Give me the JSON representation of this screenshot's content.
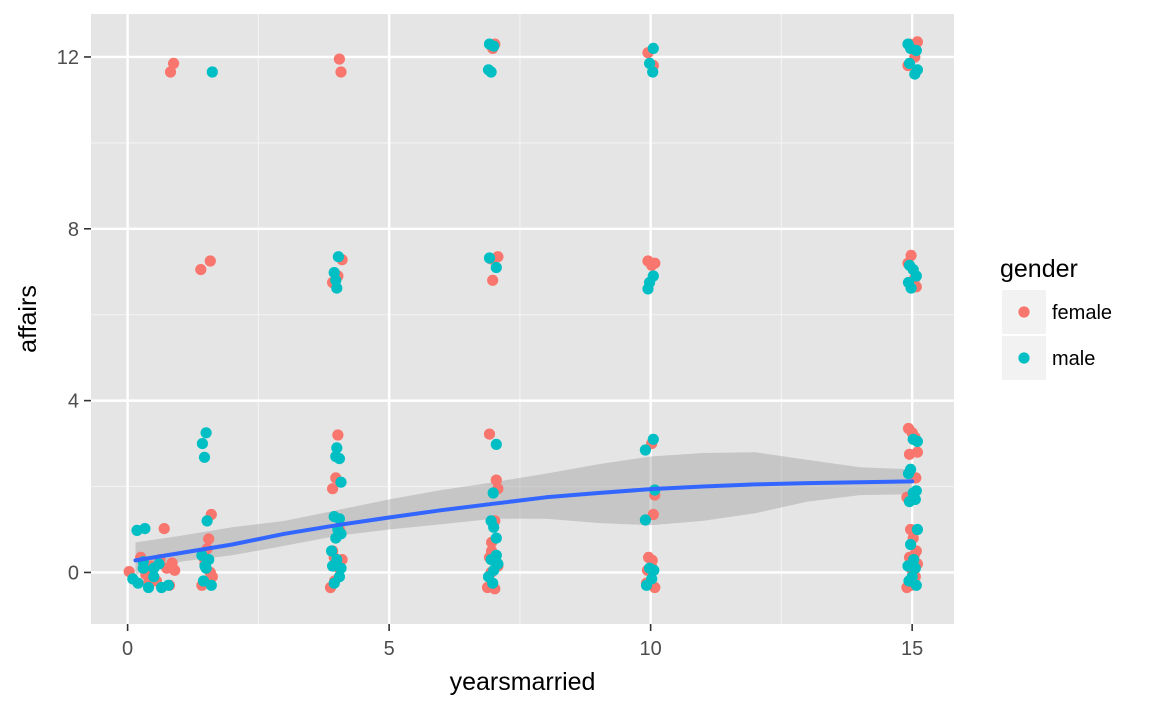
{
  "chart_data": {
    "type": "scatter",
    "title": "",
    "xlabel": "yearsmarried",
    "ylabel": "affairs",
    "xlim": [
      -0.7,
      15.8
    ],
    "ylim": [
      -1.2,
      13.0
    ],
    "x_ticks": [
      0,
      5,
      10,
      15
    ],
    "x_tick_labels": [
      "0",
      "5",
      "10",
      "15"
    ],
    "y_ticks": [
      0,
      4,
      8,
      12
    ],
    "y_tick_labels": [
      "0",
      "4",
      "8",
      "12"
    ],
    "grid": true,
    "panel_background": "#e5e5e5",
    "legend": {
      "title": "gender",
      "position": "right",
      "entries": [
        {
          "label": "female",
          "color": "#f8766d"
        },
        {
          "label": "male",
          "color": "#00bfc4"
        }
      ]
    },
    "series": [
      {
        "name": "female",
        "color": "#f8766d",
        "points": [
          [
            0.03,
            0.02
          ],
          [
            0.25,
            0.35
          ],
          [
            0.35,
            -0.05
          ],
          [
            0.45,
            0.15
          ],
          [
            0.55,
            -0.2
          ],
          [
            0.62,
            0.3
          ],
          [
            0.7,
            1.02
          ],
          [
            0.75,
            0.1
          ],
          [
            0.8,
            -0.3
          ],
          [
            0.85,
            0.22
          ],
          [
            0.9,
            0.05
          ],
          [
            0.4,
            -0.25
          ],
          [
            0.82,
            11.65
          ],
          [
            0.88,
            11.85
          ],
          [
            1.4,
            7.05
          ],
          [
            1.58,
            7.25
          ],
          [
            1.42,
            -0.3
          ],
          [
            1.48,
            0.2
          ],
          [
            1.52,
            0.55
          ],
          [
            1.55,
            0.78
          ],
          [
            1.6,
            1.35
          ],
          [
            1.62,
            -0.1
          ],
          [
            1.45,
            0.35
          ],
          [
            1.58,
            0.0
          ],
          [
            4.05,
            11.95
          ],
          [
            4.08,
            11.65
          ],
          [
            3.92,
            6.75
          ],
          [
            4.02,
            6.9
          ],
          [
            4.1,
            7.28
          ],
          [
            4.02,
            3.2
          ],
          [
            3.98,
            2.2
          ],
          [
            3.92,
            1.95
          ],
          [
            3.88,
            -0.35
          ],
          [
            3.95,
            0.35
          ],
          [
            4.02,
            0.12
          ],
          [
            4.1,
            0.3
          ],
          [
            3.96,
            -0.2
          ],
          [
            4.05,
            1.0
          ],
          [
            3.92,
            0.5
          ],
          [
            7.02,
            12.3
          ],
          [
            6.98,
            12.2
          ],
          [
            6.95,
            7.3
          ],
          [
            7.08,
            7.35
          ],
          [
            6.98,
            6.8
          ],
          [
            6.92,
            3.22
          ],
          [
            7.05,
            2.15
          ],
          [
            7.08,
            1.95
          ],
          [
            6.88,
            -0.35
          ],
          [
            6.92,
            0.35
          ],
          [
            6.96,
            0.7
          ],
          [
            7.02,
            1.2
          ],
          [
            6.95,
            0.0
          ],
          [
            7.08,
            0.15
          ],
          [
            7.02,
            -0.38
          ],
          [
            6.96,
            0.5
          ],
          [
            9.95,
            12.1
          ],
          [
            10.05,
            11.8
          ],
          [
            9.95,
            7.25
          ],
          [
            10.08,
            7.2
          ],
          [
            10.02,
            7.15
          ],
          [
            10.02,
            3.0
          ],
          [
            10.08,
            1.8
          ],
          [
            9.92,
            -0.25
          ],
          [
            9.96,
            0.35
          ],
          [
            10.02,
            0.12
          ],
          [
            10.05,
            1.35
          ],
          [
            10.08,
            -0.35
          ],
          [
            9.94,
            0.05
          ],
          [
            10.03,
            0.28
          ],
          [
            14.95,
            12.3
          ],
          [
            15.1,
            12.35
          ],
          [
            14.92,
            11.8
          ],
          [
            15.05,
            12.0
          ],
          [
            14.98,
            7.38
          ],
          [
            15.08,
            6.65
          ],
          [
            14.92,
            7.2
          ],
          [
            15.05,
            6.85
          ],
          [
            14.93,
            3.35
          ],
          [
            15.0,
            3.25
          ],
          [
            15.05,
            3.15
          ],
          [
            15.1,
            2.8
          ],
          [
            14.95,
            2.75
          ],
          [
            15.07,
            2.2
          ],
          [
            14.9,
            1.75
          ],
          [
            14.97,
            1.0
          ],
          [
            15.02,
            0.8
          ],
          [
            15.08,
            0.5
          ],
          [
            14.9,
            -0.35
          ],
          [
            14.95,
            0.35
          ],
          [
            15.0,
            0.05
          ],
          [
            15.06,
            -0.1
          ],
          [
            15.1,
            0.2
          ],
          [
            14.98,
            -0.3
          ],
          [
            15.04,
            0.4
          ]
        ]
      },
      {
        "name": "male",
        "color": "#00bfc4",
        "points": [
          [
            0.18,
            0.98
          ],
          [
            0.33,
            1.02
          ],
          [
            0.1,
            -0.15
          ],
          [
            0.2,
            -0.25
          ],
          [
            0.3,
            0.1
          ],
          [
            0.5,
            -0.1
          ],
          [
            0.6,
            0.2
          ],
          [
            0.65,
            -0.35
          ],
          [
            0.78,
            -0.3
          ],
          [
            0.3,
            0.25
          ],
          [
            0.5,
            0.1
          ],
          [
            0.4,
            -0.35
          ],
          [
            1.62,
            11.65
          ],
          [
            1.43,
            3.0
          ],
          [
            1.5,
            3.25
          ],
          [
            1.47,
            2.68
          ],
          [
            1.52,
            1.2
          ],
          [
            1.42,
            0.4
          ],
          [
            1.5,
            0.1
          ],
          [
            1.45,
            -0.2
          ],
          [
            1.55,
            0.3
          ],
          [
            1.6,
            -0.3
          ],
          [
            1.48,
            0.15
          ],
          [
            3.95,
            6.98
          ],
          [
            4.0,
            6.62
          ],
          [
            4.03,
            7.35
          ],
          [
            3.98,
            6.8
          ],
          [
            4.0,
            2.9
          ],
          [
            4.05,
            2.65
          ],
          [
            3.98,
            2.7
          ],
          [
            4.08,
            2.1
          ],
          [
            3.95,
            1.3
          ],
          [
            4.05,
            1.25
          ],
          [
            4.02,
            1.0
          ],
          [
            3.98,
            0.8
          ],
          [
            4.08,
            0.9
          ],
          [
            3.9,
            0.5
          ],
          [
            4.0,
            0.3
          ],
          [
            4.05,
            -0.1
          ],
          [
            3.95,
            -0.25
          ],
          [
            4.08,
            0.1
          ],
          [
            3.92,
            0.15
          ],
          [
            6.92,
            12.3
          ],
          [
            7.0,
            12.25
          ],
          [
            6.9,
            11.7
          ],
          [
            6.95,
            11.65
          ],
          [
            6.92,
            7.32
          ],
          [
            7.05,
            7.1
          ],
          [
            7.05,
            2.98
          ],
          [
            6.99,
            1.85
          ],
          [
            6.95,
            1.2
          ],
          [
            7.0,
            1.05
          ],
          [
            7.05,
            0.8
          ],
          [
            6.95,
            0.3
          ],
          [
            7.05,
            0.4
          ],
          [
            6.9,
            -0.1
          ],
          [
            7.0,
            0.05
          ],
          [
            6.98,
            -0.25
          ],
          [
            7.08,
            0.2
          ],
          [
            10.05,
            12.2
          ],
          [
            9.98,
            11.85
          ],
          [
            10.04,
            11.65
          ],
          [
            10.05,
            6.9
          ],
          [
            9.95,
            6.6
          ],
          [
            9.98,
            6.75
          ],
          [
            9.9,
            2.85
          ],
          [
            10.05,
            3.1
          ],
          [
            10.08,
            1.92
          ],
          [
            9.9,
            1.22
          ],
          [
            9.92,
            -0.3
          ],
          [
            9.98,
            0.1
          ],
          [
            10.02,
            -0.15
          ],
          [
            10.06,
            0.05
          ],
          [
            14.92,
            12.3
          ],
          [
            15.08,
            12.15
          ],
          [
            15.1,
            11.7
          ],
          [
            14.95,
            11.85
          ],
          [
            15.05,
            11.6
          ],
          [
            14.97,
            12.2
          ],
          [
            14.95,
            7.15
          ],
          [
            15.02,
            7.05
          ],
          [
            14.98,
            6.62
          ],
          [
            15.08,
            6.9
          ],
          [
            14.93,
            6.75
          ],
          [
            15.1,
            3.05
          ],
          [
            15.02,
            3.1
          ],
          [
            14.97,
            2.4
          ],
          [
            14.93,
            2.3
          ],
          [
            15.08,
            1.9
          ],
          [
            15.02,
            1.85
          ],
          [
            15.06,
            1.7
          ],
          [
            14.95,
            1.65
          ],
          [
            15.1,
            1.0
          ],
          [
            14.97,
            0.65
          ],
          [
            15.03,
            0.3
          ],
          [
            14.92,
            0.15
          ],
          [
            15.08,
            -0.3
          ],
          [
            15.0,
            -0.1
          ],
          [
            14.94,
            -0.2
          ],
          [
            15.06,
            0.1
          ]
        ]
      }
    ],
    "smooth": {
      "color": "#3366ff",
      "ribbon_color": "#999999",
      "points": [
        {
          "x": 0.15,
          "y": 0.28,
          "lo": -0.05,
          "hi": 0.7
        },
        {
          "x": 1.0,
          "y": 0.45,
          "lo": 0.25,
          "hi": 0.85
        },
        {
          "x": 2.0,
          "y": 0.65,
          "lo": 0.4,
          "hi": 1.05
        },
        {
          "x": 3.0,
          "y": 0.9,
          "lo": 0.62,
          "hi": 1.2
        },
        {
          "x": 4.0,
          "y": 1.1,
          "lo": 0.85,
          "hi": 1.45
        },
        {
          "x": 5.0,
          "y": 1.28,
          "lo": 1.0,
          "hi": 1.7
        },
        {
          "x": 6.0,
          "y": 1.45,
          "lo": 1.12,
          "hi": 1.92
        },
        {
          "x": 7.0,
          "y": 1.6,
          "lo": 1.25,
          "hi": 2.1
        },
        {
          "x": 8.0,
          "y": 1.75,
          "lo": 1.25,
          "hi": 2.3
        },
        {
          "x": 9.0,
          "y": 1.85,
          "lo": 1.15,
          "hi": 2.52
        },
        {
          "x": 10.0,
          "y": 1.94,
          "lo": 1.1,
          "hi": 2.7
        },
        {
          "x": 11.0,
          "y": 2.0,
          "lo": 1.2,
          "hi": 2.78
        },
        {
          "x": 12.0,
          "y": 2.05,
          "lo": 1.38,
          "hi": 2.8
        },
        {
          "x": 13.0,
          "y": 2.08,
          "lo": 1.65,
          "hi": 2.62
        },
        {
          "x": 14.0,
          "y": 2.1,
          "lo": 1.8,
          "hi": 2.45
        },
        {
          "x": 15.0,
          "y": 2.12,
          "lo": 1.82,
          "hi": 2.4
        }
      ]
    }
  }
}
